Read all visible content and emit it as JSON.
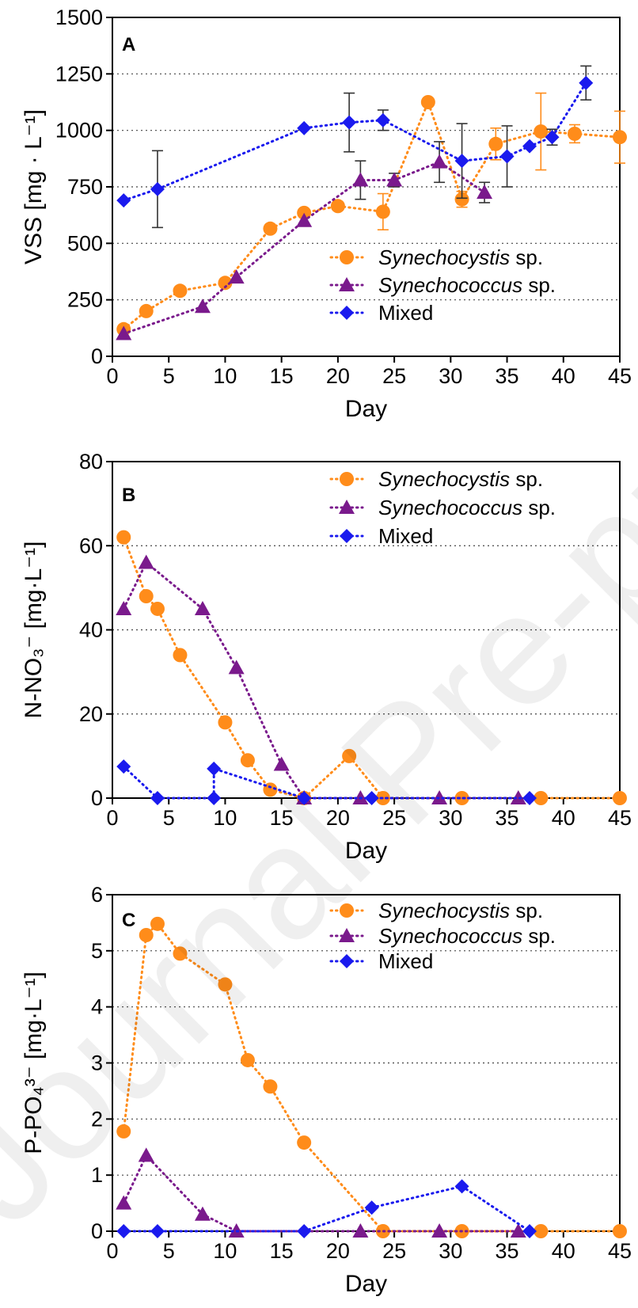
{
  "figure": {
    "watermark": "Journal Pre-proof"
  },
  "chart_data": [
    {
      "type": "line",
      "panel_label": "A",
      "xlabel": "Day",
      "ylabel": "VSS [mg · L⁻¹]",
      "xlim": [
        0,
        45
      ],
      "ylim": [
        0,
        1500
      ],
      "xticks": [
        0,
        5,
        10,
        15,
        20,
        25,
        30,
        35,
        40,
        45
      ],
      "yticks": [
        0,
        250,
        500,
        750,
        1000,
        1250,
        1500
      ],
      "grid": "horizontal dotted",
      "legend_position": "bottom-right",
      "series": [
        {
          "name": "Synechocystis sp.",
          "name_italic": "Synechocystis",
          "name_suffix": " sp.",
          "color": "#FF8C1A",
          "marker": "circle",
          "line": "dotted",
          "points": [
            [
              1,
              120
            ],
            [
              3,
              200
            ],
            [
              6,
              290
            ],
            [
              10,
              325
            ],
            [
              14,
              565
            ],
            [
              17,
              635
            ],
            [
              20,
              665
            ],
            [
              24,
              640
            ],
            [
              28,
              1125
            ],
            [
              31,
              695
            ],
            [
              34,
              940
            ],
            [
              38,
              995
            ],
            [
              41,
              985
            ],
            [
              45,
              970
            ]
          ],
          "errors": [
            [
              24,
              640,
              80
            ],
            [
              31,
              695,
              35
            ],
            [
              34,
              940,
              70
            ],
            [
              38,
              995,
              170
            ],
            [
              41,
              985,
              40
            ],
            [
              45,
              970,
              115
            ]
          ]
        },
        {
          "name": "Synechococcus sp.",
          "name_italic": "Synechococcus",
          "name_suffix": " sp.",
          "color": "#7A1A8C",
          "marker": "triangle",
          "line": "dotted",
          "points": [
            [
              1,
              100
            ],
            [
              8,
              220
            ],
            [
              11,
              350
            ],
            [
              17,
              600
            ],
            [
              22,
              780
            ],
            [
              25,
              780
            ],
            [
              29,
              860
            ],
            [
              33,
              725
            ]
          ],
          "errors": [
            [
              22,
              780,
              85
            ],
            [
              25,
              780,
              30
            ],
            [
              29,
              860,
              90
            ],
            [
              33,
              725,
              45
            ]
          ]
        },
        {
          "name": "Mixed",
          "name_italic": "",
          "name_suffix": "Mixed",
          "color": "#1A1AEE",
          "marker": "diamond",
          "line": "dotted",
          "points": [
            [
              1,
              690
            ],
            [
              4,
              740
            ],
            [
              17,
              1010
            ],
            [
              21,
              1035
            ],
            [
              24,
              1045
            ],
            [
              31,
              865
            ],
            [
              35,
              885
            ],
            [
              37,
              930
            ],
            [
              39,
              970
            ],
            [
              42,
              1210
            ]
          ],
          "errors": [
            [
              4,
              740,
              170
            ],
            [
              21,
              1035,
              130
            ],
            [
              24,
              1045,
              45
            ],
            [
              31,
              865,
              165
            ],
            [
              35,
              885,
              135
            ],
            [
              39,
              970,
              35
            ],
            [
              42,
              1210,
              75
            ]
          ]
        }
      ]
    },
    {
      "type": "line",
      "panel_label": "B",
      "xlabel": "Day",
      "ylabel": "N-NO₃⁻ [mg·L⁻¹]",
      "xlim": [
        0,
        45
      ],
      "ylim": [
        0,
        80
      ],
      "xticks": [
        0,
        5,
        10,
        15,
        20,
        25,
        30,
        35,
        40,
        45
      ],
      "yticks": [
        0,
        20,
        40,
        60,
        80
      ],
      "grid": "horizontal dotted",
      "legend_position": "top-right",
      "series": [
        {
          "name": "Synechocystis sp.",
          "name_italic": "Synechocystis",
          "name_suffix": " sp.",
          "color": "#FF8C1A",
          "marker": "circle",
          "line": "dotted",
          "points": [
            [
              1,
              62
            ],
            [
              3,
              48
            ],
            [
              4,
              45
            ],
            [
              6,
              34
            ],
            [
              10,
              18
            ],
            [
              12,
              9
            ],
            [
              14,
              2
            ],
            [
              17,
              0
            ],
            [
              21,
              10
            ],
            [
              24,
              0
            ],
            [
              31,
              0
            ],
            [
              38,
              0
            ],
            [
              45,
              0
            ]
          ]
        },
        {
          "name": "Synechococcus sp.",
          "name_italic": "Synechococcus",
          "name_suffix": " sp.",
          "color": "#7A1A8C",
          "marker": "triangle",
          "line": "dotted",
          "points": [
            [
              1,
              45
            ],
            [
              3,
              56
            ],
            [
              8,
              45
            ],
            [
              11,
              31
            ],
            [
              15,
              8
            ],
            [
              17,
              0
            ],
            [
              22,
              0
            ],
            [
              29,
              0
            ],
            [
              36,
              0
            ]
          ]
        },
        {
          "name": "Mixed",
          "name_italic": "",
          "name_suffix": "Mixed",
          "color": "#1A1AEE",
          "marker": "diamond",
          "line": "dotted",
          "points": [
            [
              1,
              7.5
            ],
            [
              4,
              0
            ],
            [
              9,
              0
            ],
            [
              9,
              7
            ],
            [
              17,
              0
            ],
            [
              23,
              0
            ],
            [
              37,
              0
            ]
          ]
        }
      ]
    },
    {
      "type": "line",
      "panel_label": "C",
      "xlabel": "Day",
      "ylabel": "P-PO₄³⁻ [mg·L⁻¹]",
      "xlim": [
        0,
        45
      ],
      "ylim": [
        0,
        6
      ],
      "xticks": [
        0,
        5,
        10,
        15,
        20,
        25,
        30,
        35,
        40,
        45
      ],
      "yticks": [
        0,
        1,
        2,
        3,
        4,
        5,
        6
      ],
      "grid": "horizontal dotted",
      "legend_position": "top-right",
      "series": [
        {
          "name": "Synechocystis sp.",
          "name_italic": "Synechocystis",
          "name_suffix": " sp.",
          "color": "#FF8C1A",
          "marker": "circle",
          "line": "dotted",
          "points": [
            [
              1,
              1.78
            ],
            [
              3,
              5.28
            ],
            [
              4,
              5.48
            ],
            [
              6,
              4.95
            ],
            [
              10,
              4.4
            ],
            [
              12,
              3.05
            ],
            [
              14,
              2.58
            ],
            [
              17,
              1.58
            ],
            [
              24,
              0
            ],
            [
              31,
              0
            ],
            [
              38,
              0
            ],
            [
              45,
              0
            ]
          ]
        },
        {
          "name": "Synechococcus sp.",
          "name_italic": "Synechococcus",
          "name_suffix": " sp.",
          "color": "#7A1A8C",
          "marker": "triangle",
          "line": "dotted",
          "points": [
            [
              1,
              0.5
            ],
            [
              3,
              1.35
            ],
            [
              8,
              0.3
            ],
            [
              11,
              0
            ],
            [
              22,
              0
            ],
            [
              29,
              0
            ],
            [
              36,
              0
            ]
          ]
        },
        {
          "name": "Mixed",
          "name_italic": "",
          "name_suffix": "Mixed",
          "color": "#1A1AEE",
          "marker": "diamond",
          "line": "dotted",
          "points": [
            [
              1,
              0
            ],
            [
              4,
              0
            ],
            [
              17,
              0
            ],
            [
              23,
              0.42
            ],
            [
              31,
              0.8
            ],
            [
              37,
              0
            ]
          ]
        }
      ]
    }
  ]
}
